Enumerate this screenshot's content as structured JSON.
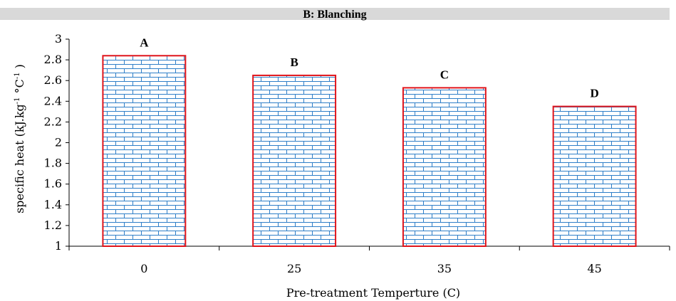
{
  "chart_data": {
    "type": "bar",
    "title": "B: Blanching",
    "xlabel": "Pre-treatment Temperture (C)",
    "ylabel": {
      "base": "specific heat (kJ.kg",
      "sup1": "-1",
      "mid": " °C",
      "sup2": "-1",
      "end": " )"
    },
    "categories": [
      "0",
      "25",
      "35",
      "45"
    ],
    "values": [
      2.84,
      2.65,
      2.53,
      2.35
    ],
    "letters": [
      "A",
      "B",
      "C",
      "D"
    ],
    "ylim": [
      1,
      3
    ],
    "yticks": [
      "1",
      "1.2",
      "1.4",
      "1.6",
      "1.8",
      "2",
      "2.2",
      "2.4",
      "2.6",
      "2.8",
      "3"
    ],
    "grid": false,
    "legend": "none",
    "colors": {
      "bar_outline": "#e0141b",
      "brick_line": "#2f7fc8",
      "bar_fill": "#ffffff",
      "title_band": "#d9d9d9"
    }
  }
}
